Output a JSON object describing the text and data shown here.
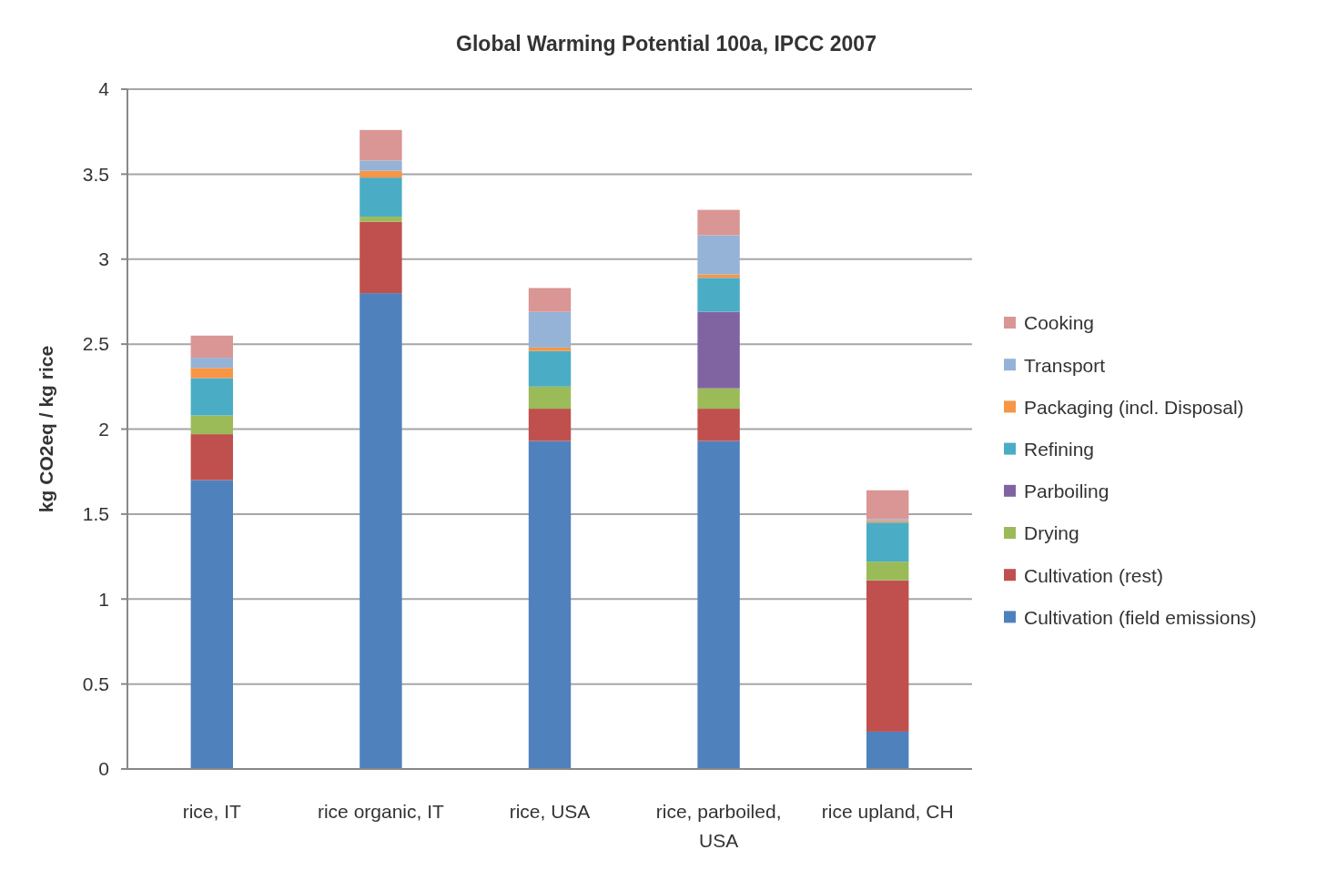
{
  "chart_data": {
    "type": "bar",
    "stacked": true,
    "title": "Global Warming Potential 100a, IPCC 2007",
    "ylabel": "kg CO2eq / kg rice",
    "categories": [
      "rice, IT",
      "rice organic, IT",
      "rice, USA",
      "rice, parboiled, USA",
      "rice upland, CH"
    ],
    "series": [
      {
        "name": "Cultivation (field emissions)",
        "color": "#4f81bd",
        "values": [
          1.7,
          2.8,
          1.93,
          1.93,
          0.22
        ]
      },
      {
        "name": "Cultivation (rest)",
        "color": "#c0504d",
        "values": [
          0.27,
          0.42,
          0.19,
          0.19,
          0.89
        ]
      },
      {
        "name": "Drying",
        "color": "#9bbb59",
        "values": [
          0.11,
          0.03,
          0.13,
          0.12,
          0.11
        ]
      },
      {
        "name": "Parboiling",
        "color": "#8064a2",
        "values": [
          0,
          0,
          0,
          0.45,
          0
        ]
      },
      {
        "name": "Refining",
        "color": "#4bacc6",
        "values": [
          0.22,
          0.23,
          0.21,
          0.2,
          0.23
        ]
      },
      {
        "name": "Packaging (incl. Disposal)",
        "color": "#f79646",
        "values": [
          0.06,
          0.04,
          0.02,
          0.02,
          0.01
        ]
      },
      {
        "name": "Transport",
        "color": "#95b3d7",
        "values": [
          0.06,
          0.06,
          0.21,
          0.23,
          0.01
        ]
      },
      {
        "name": "Cooking",
        "color": "#d99694",
        "values": [
          0.13,
          0.18,
          0.14,
          0.15,
          0.17
        ]
      }
    ],
    "ylim": [
      0,
      4
    ],
    "yticks": [
      0,
      0.5,
      1,
      1.5,
      2,
      2.5,
      3,
      3.5,
      4
    ],
    "grid": "y",
    "legend": "right"
  }
}
